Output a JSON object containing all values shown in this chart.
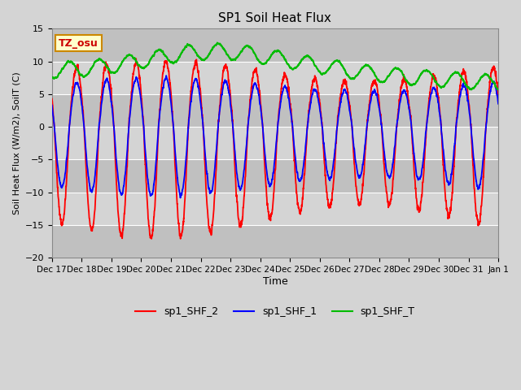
{
  "title": "SP1 Soil Heat Flux",
  "xlabel": "Time",
  "ylabel": "Soil Heat Flux (W/m2), SoilT (C)",
  "ylim": [
    -20,
    15
  ],
  "xlim_end": 360,
  "tick_positions": [
    0,
    24,
    48,
    72,
    96,
    120,
    144,
    168,
    192,
    216,
    240,
    264,
    288,
    312,
    336,
    360
  ],
  "tick_labels": [
    "Dec 17",
    "Dec 18",
    "Dec 19",
    "Dec 20",
    "Dec 21",
    "Dec 22",
    "Dec 23",
    "Dec 24",
    "Dec 25",
    "Dec 26",
    "Dec 27",
    "Dec 28",
    "Dec 29",
    "Dec 30",
    "Dec 31",
    "Jan 1"
  ],
  "legend_entries": [
    "sp1_SHF_2",
    "sp1_SHF_1",
    "sp1_SHF_T"
  ],
  "tz_label": "TZ_osu",
  "shf2_color": "#ff0000",
  "shf1_color": "#0000ff",
  "shft_color": "#00bb00",
  "bg_color": "#d4d4d4"
}
